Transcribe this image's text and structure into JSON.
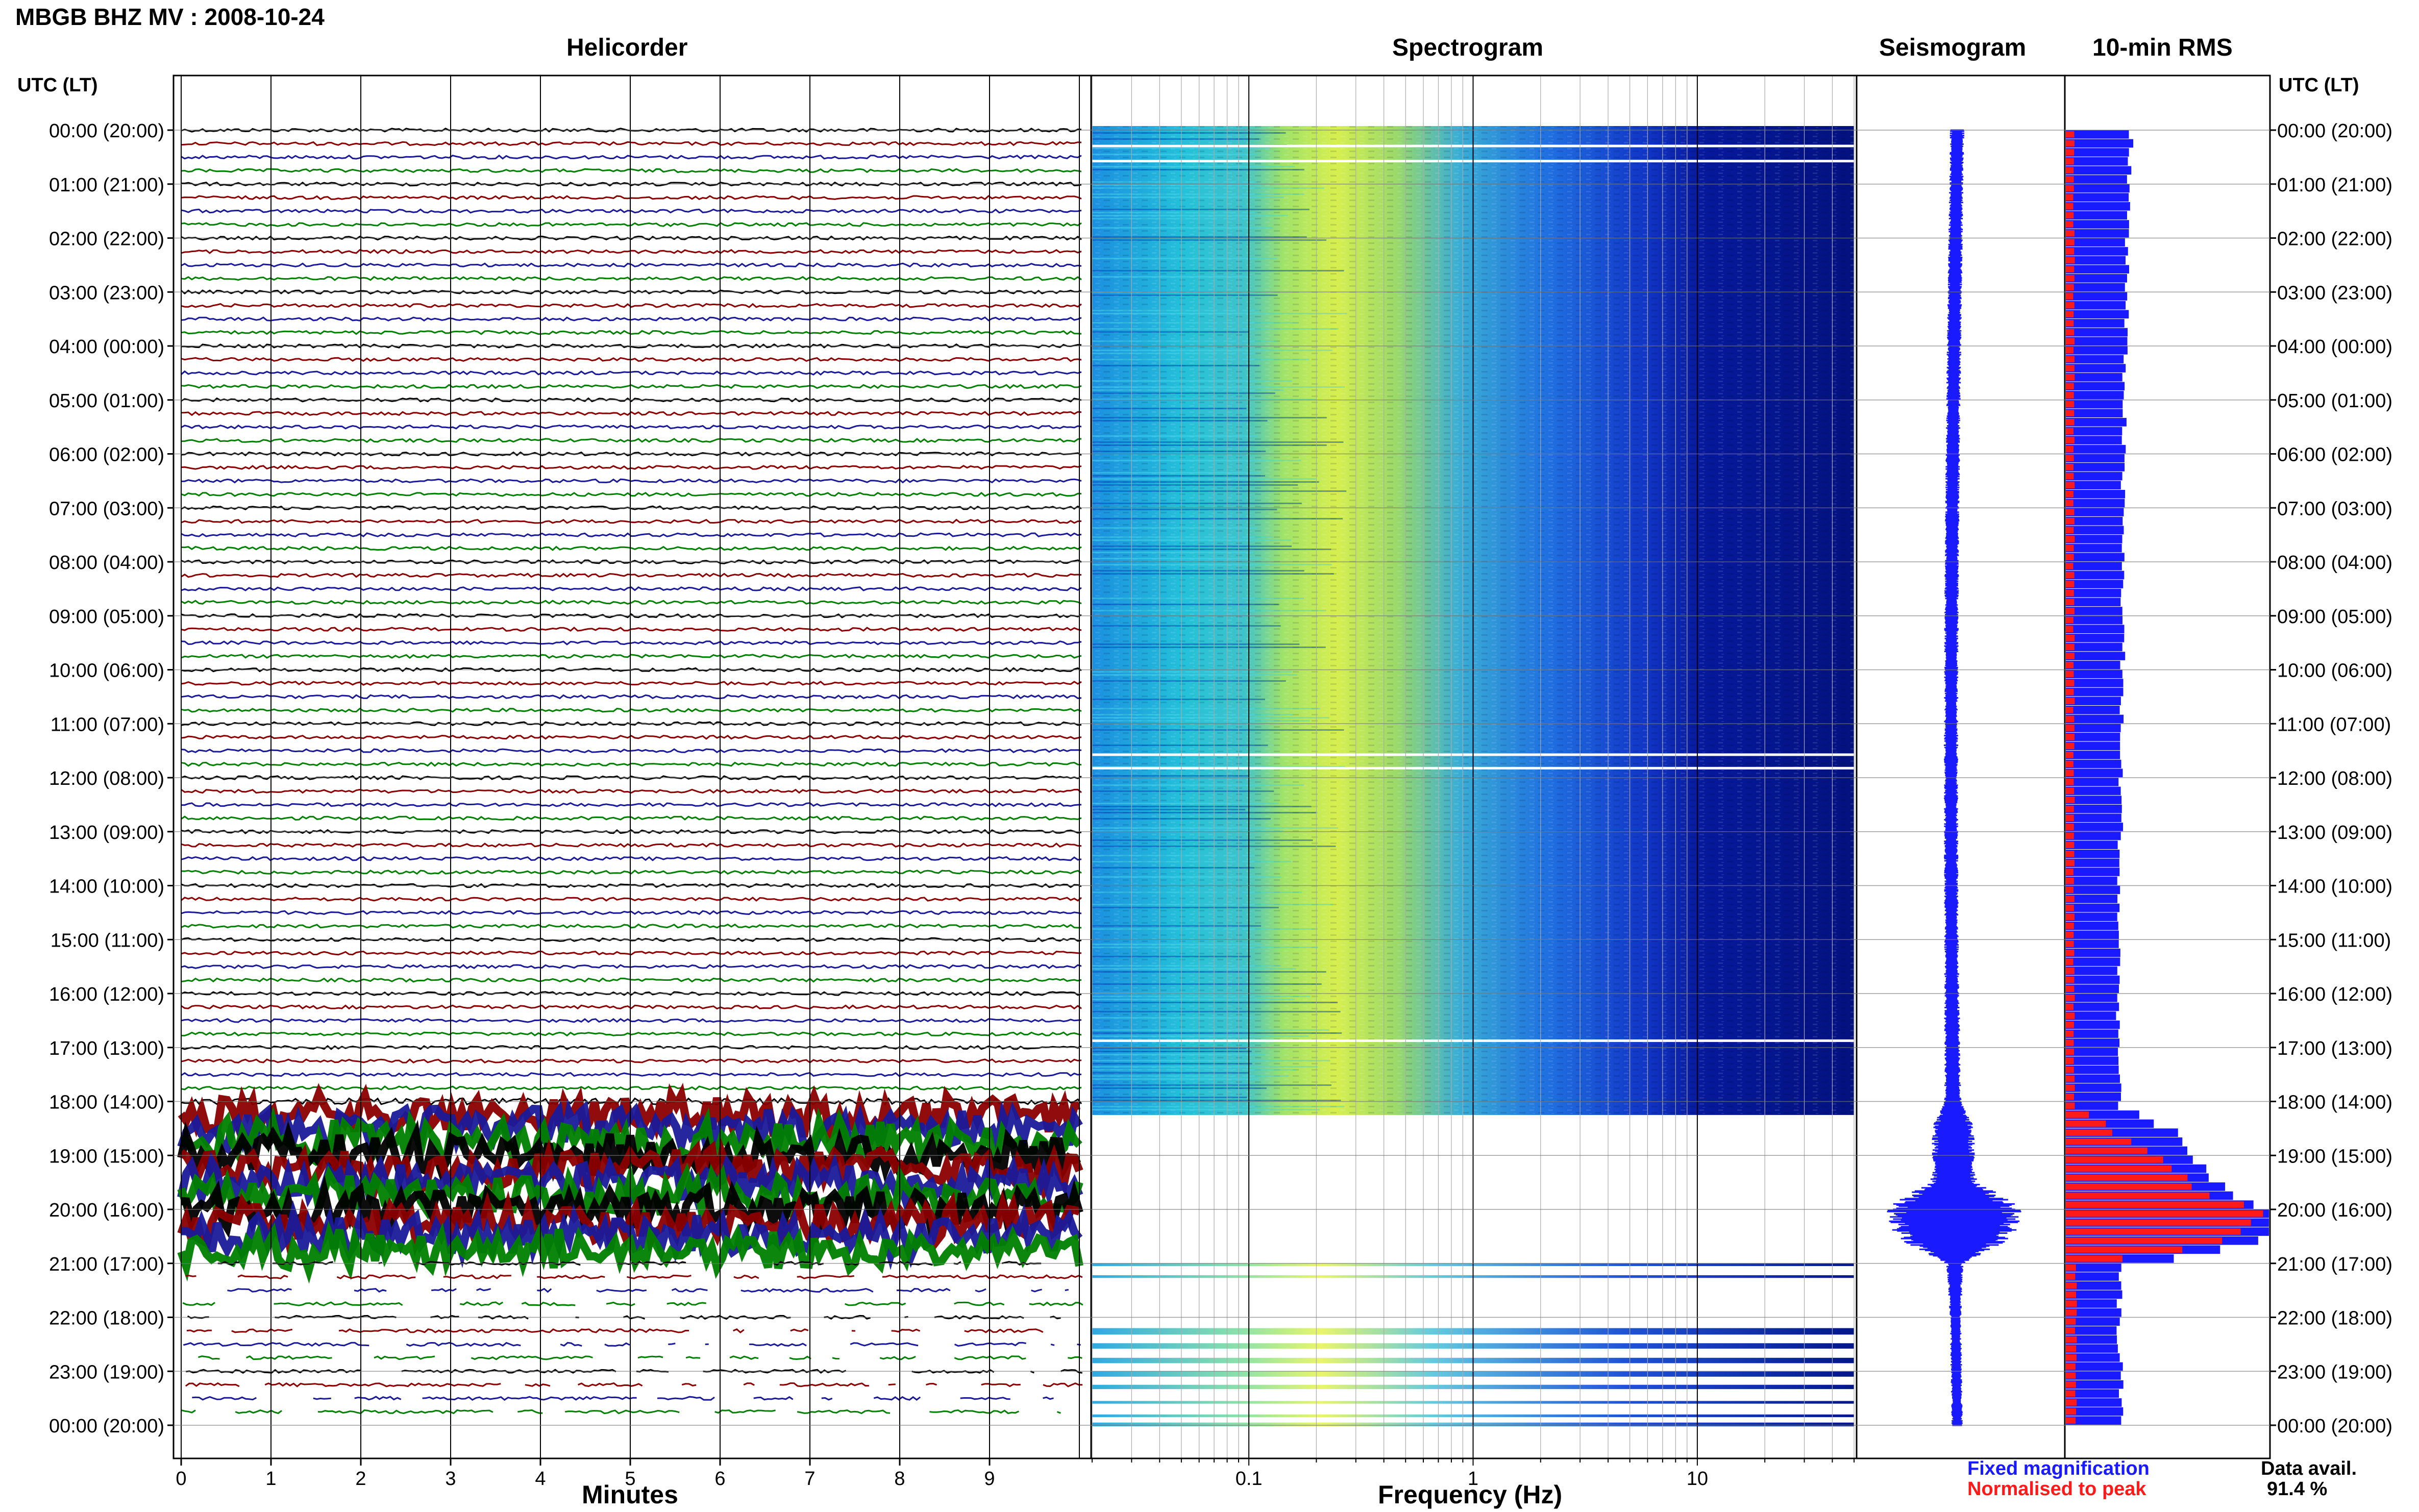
{
  "header": {
    "station_title": "MBGB BHZ MV : 2008-10-24"
  },
  "panels": {
    "helicorder": "Helicorder",
    "spectrogram": "Spectrogram",
    "seismogram": "Seismogram",
    "rms": "10-min RMS"
  },
  "axis_labels": {
    "utc_header": "UTC (LT)",
    "helicorder_x": "Minutes",
    "spectrogram_x": "Frequency (Hz)"
  },
  "legend": {
    "fixed": "Fixed magnification",
    "normalised": "Normalised to peak"
  },
  "availability": {
    "label": "Data avail.",
    "value": "91.4 %"
  },
  "colors": {
    "trace_cycle": [
      "#000000",
      "#8b0000",
      "#1a1a99",
      "#008000"
    ],
    "seismogram": "#1a1aff",
    "rms_fixed": "#1a1aff",
    "rms_normalised": "#ff1a1a",
    "spectrogram_low": "#000080",
    "spectrogram_high": "#ffff66"
  },
  "chart_data": [
    {
      "type": "line",
      "title": "Helicorder",
      "xlabel": "Minutes",
      "x_ticks": [
        "0",
        "1",
        "2",
        "3",
        "4",
        "5",
        "6",
        "7",
        "8",
        "9"
      ],
      "xlim": [
        0,
        10
      ],
      "time_labels": [
        "00:00 (20:00)",
        "01:00 (21:00)",
        "02:00 (22:00)",
        "03:00 (23:00)",
        "04:00 (00:00)",
        "05:00 (01:00)",
        "06:00 (02:00)",
        "07:00 (03:00)",
        "08:00 (04:00)",
        "09:00 (05:00)",
        "10:00 (06:00)",
        "11:00 (07:00)",
        "12:00 (08:00)",
        "13:00 (09:00)",
        "14:00 (10:00)",
        "15:00 (11:00)",
        "16:00 (12:00)",
        "17:00 (13:00)",
        "18:00 (14:00)",
        "19:00 (15:00)",
        "20:00 (16:00)",
        "21:00 (17:00)",
        "22:00 (18:00)",
        "23:00 (19:00)",
        "00:00 (20:00)"
      ],
      "hours_with_high_activity": [
        18.25,
        21.0
      ]
    },
    {
      "type": "heatmap",
      "title": "Spectrogram",
      "xlabel": "Frequency (Hz)",
      "x_scale": "log",
      "x_ticks": [
        "0.1",
        "1",
        "10"
      ],
      "xlim": [
        0.02,
        50
      ],
      "data_gap_hours": [
        18.25,
        21.0
      ]
    },
    {
      "type": "line",
      "title": "Seismogram",
      "amplitude_by_hour": [
        {
          "hour": 0,
          "amp": 0.1
        },
        {
          "hour": 3,
          "amp": 0.1
        },
        {
          "hour": 6,
          "amp": 0.1
        },
        {
          "hour": 9,
          "amp": 0.1
        },
        {
          "hour": 12,
          "amp": 0.1
        },
        {
          "hour": 15,
          "amp": 0.1
        },
        {
          "hour": 18,
          "amp": 0.12
        },
        {
          "hour": 18.5,
          "amp": 0.3
        },
        {
          "hour": 19,
          "amp": 0.3
        },
        {
          "hour": 19.5,
          "amp": 0.35
        },
        {
          "hour": 20,
          "amp": 1.0
        },
        {
          "hour": 20.5,
          "amp": 0.85
        },
        {
          "hour": 21,
          "amp": 0.12
        },
        {
          "hour": 22,
          "amp": 0.08
        },
        {
          "hour": 23,
          "amp": 0.08
        },
        {
          "hour": 24,
          "amp": 0.08
        }
      ]
    },
    {
      "type": "bar",
      "title": "10-min RMS",
      "series": [
        {
          "name": "Fixed magnification",
          "hours": [
            0,
            1,
            2,
            3,
            4,
            5,
            6,
            7,
            8,
            9,
            10,
            11,
            12,
            13,
            14,
            15,
            16,
            17,
            18,
            18.5,
            19,
            19.5,
            20,
            20.5,
            21,
            22,
            23
          ],
          "values": [
            0.32,
            0.31,
            0.3,
            0.3,
            0.29,
            0.29,
            0.28,
            0.28,
            0.28,
            0.28,
            0.28,
            0.27,
            0.27,
            0.27,
            0.26,
            0.26,
            0.26,
            0.26,
            0.26,
            0.55,
            0.65,
            0.75,
            1.0,
            0.98,
            0.27,
            0.26,
            0.27
          ]
        },
        {
          "name": "Normalised to peak",
          "hours": [
            0,
            1,
            2,
            3,
            4,
            5,
            6,
            7,
            8,
            9,
            10,
            11,
            12,
            13,
            14,
            15,
            16,
            17,
            18,
            18.5,
            19,
            19.5,
            20,
            20.5,
            21,
            22,
            23
          ],
          "values": [
            0.04,
            0.04,
            0.04,
            0.04,
            0.04,
            0.04,
            0.04,
            0.04,
            0.04,
            0.04,
            0.04,
            0.04,
            0.04,
            0.04,
            0.04,
            0.04,
            0.04,
            0.04,
            0.04,
            0.25,
            0.45,
            0.6,
            0.95,
            0.8,
            0.05,
            0.05,
            0.05
          ]
        }
      ]
    }
  ]
}
